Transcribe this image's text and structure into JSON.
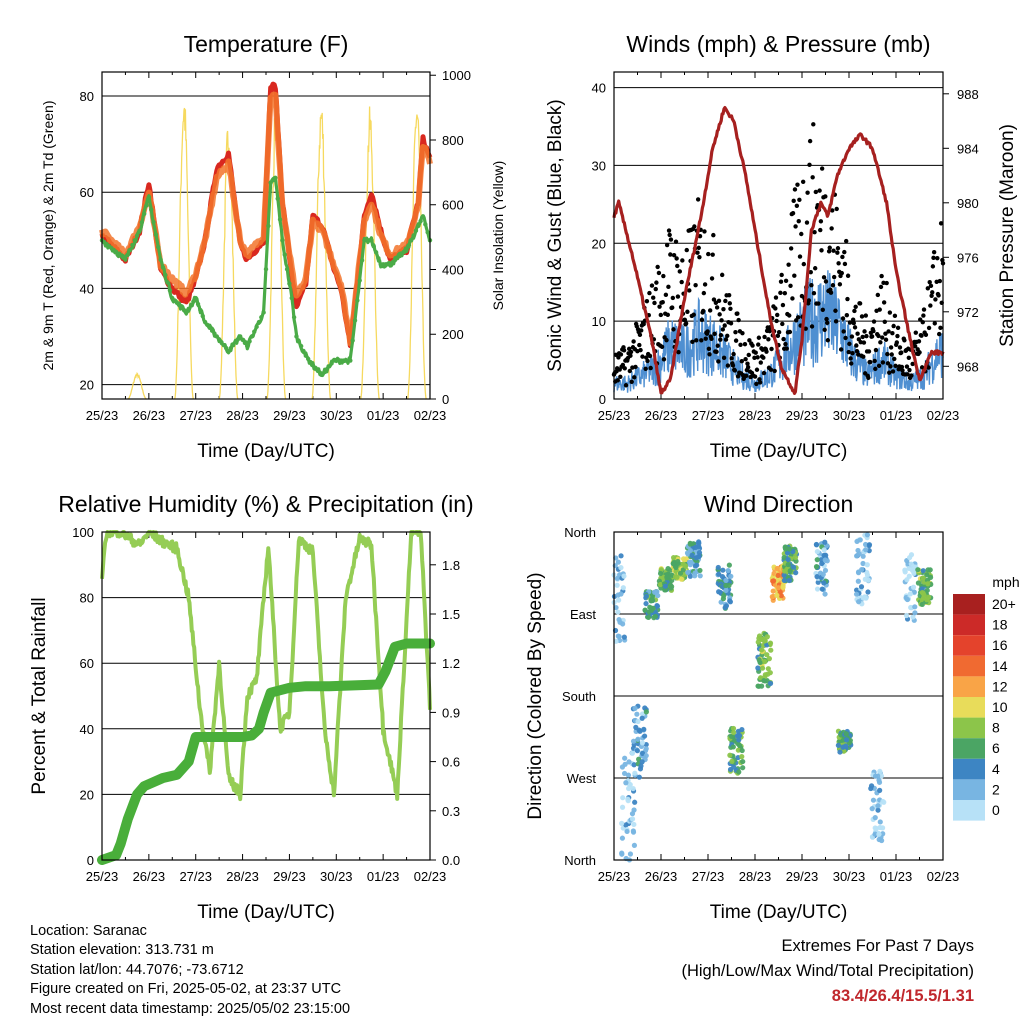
{
  "chart_data": [
    {
      "type": "line",
      "title": "Temperature (F)",
      "xlabel": "Time (Day/UTC)",
      "ylabel": "2m & 9m T (Red, Orange) & 2m Td (Green)",
      "ylabel_right": "Solar Insolation (Yellow)",
      "x_ticks": [
        "25/23",
        "26/23",
        "27/23",
        "28/23",
        "29/23",
        "30/23",
        "01/23",
        "02/23"
      ],
      "ylim": [
        17,
        85
      ],
      "y_ticks": [
        "20",
        "40",
        "60",
        "80"
      ],
      "ylim_right": [
        0,
        1010
      ],
      "y_ticks_right": [
        "0",
        "200",
        "400",
        "600",
        "800",
        "1000"
      ],
      "x_days": [
        0,
        0.5,
        0.8,
        1.0,
        1.25,
        1.5,
        1.8,
        2.0,
        2.2,
        2.45,
        2.7,
        2.95,
        3.1,
        3.45,
        3.6,
        3.7,
        3.85,
        4.05,
        4.15,
        4.35,
        4.5,
        4.7,
        4.95,
        5.1,
        5.3,
        5.6,
        5.75,
        5.95,
        6.15,
        6.5,
        6.75,
        6.85,
        7.0
      ],
      "series": [
        {
          "name": "2m T",
          "color": "#d9281f",
          "values": [
            51,
            46,
            52,
            62,
            44,
            40,
            37,
            42,
            50,
            65,
            68,
            49,
            46,
            50,
            82,
            82,
            58,
            43,
            36,
            41,
            55,
            53,
            44,
            40,
            28,
            55,
            60,
            52,
            46,
            48,
            58,
            71,
            67
          ]
        },
        {
          "name": "9m T",
          "color": "#f2742c",
          "values": [
            52,
            47,
            53,
            60,
            45,
            42,
            39,
            43,
            50,
            63,
            66,
            50,
            47,
            51,
            80,
            80,
            57,
            44,
            38,
            42,
            54,
            52,
            45,
            41,
            29,
            54,
            58,
            51,
            47,
            49,
            57,
            70,
            66
          ]
        },
        {
          "name": "2m Td",
          "color": "#4aab47",
          "values": [
            50,
            46,
            52,
            59,
            46,
            38,
            35,
            38,
            33,
            30,
            27,
            30,
            28,
            35,
            62,
            63,
            50,
            38,
            30,
            26,
            24,
            22,
            25,
            25,
            25,
            50,
            50,
            45,
            45,
            48,
            53,
            55,
            50
          ]
        }
      ],
      "solar_peaks_days": [
        0.75,
        1.75,
        2.7,
        3.72,
        4.68,
        5.72,
        6.72
      ],
      "solar_peaks": [
        80,
        960,
        880,
        970,
        940,
        910,
        950
      ]
    },
    {
      "type": "line",
      "title": "Winds (mph) & Pressure (mb)",
      "xlabel": "Time (Day/UTC)",
      "ylabel": "Sonic Wind & Gust (Blue, Black)",
      "ylabel_right": "Station Pressure (Maroon)",
      "x_ticks": [
        "25/23",
        "26/23",
        "27/23",
        "28/23",
        "29/23",
        "30/23",
        "01/23",
        "02/23"
      ],
      "ylim": [
        0,
        42
      ],
      "y_ticks": [
        "0",
        "10",
        "20",
        "30",
        "40"
      ],
      "ylim_right": [
        965.6,
        989.6
      ],
      "y_ticks_right": [
        "968",
        "972",
        "976",
        "980",
        "984",
        "988"
      ],
      "pressure_days": [
        0,
        0.1,
        0.4,
        0.8,
        1.0,
        1.2,
        1.5,
        1.85,
        2.1,
        2.35,
        2.55,
        2.8,
        3.05,
        3.3,
        3.55,
        3.85,
        4.0,
        4.2,
        4.4,
        4.55,
        4.75,
        5.0,
        5.25,
        5.5,
        5.8,
        6.0,
        6.3,
        6.5,
        6.75,
        7.0
      ],
      "pressure": [
        979,
        980,
        976,
        970,
        966,
        967,
        973,
        979,
        984,
        987,
        986,
        982,
        977,
        972,
        968,
        966,
        970,
        978,
        980,
        979,
        982,
        984,
        985,
        984,
        980,
        975,
        970,
        967,
        969,
        969
      ],
      "wind_days": [
        0,
        0.3,
        0.6,
        0.9,
        1.2,
        1.5,
        1.8,
        2.1,
        2.4,
        2.7,
        3.0,
        3.3,
        3.6,
        3.9,
        4.2,
        4.5,
        4.8,
        5.1,
        5.4,
        5.7,
        6.0,
        6.3,
        6.6,
        6.9
      ],
      "wind": [
        2,
        2,
        3,
        4,
        7,
        6,
        8,
        7,
        5,
        3,
        2,
        3,
        5,
        8,
        10,
        11,
        9,
        5,
        3,
        5,
        3,
        2,
        3,
        6
      ],
      "gust": [
        4,
        5,
        8,
        12,
        16,
        14,
        18,
        15,
        10,
        7,
        5,
        7,
        12,
        20,
        25,
        22,
        18,
        10,
        7,
        12,
        7,
        5,
        8,
        16
      ]
    },
    {
      "type": "line",
      "title": "Relative Humidity (%) & Precipitation (in)",
      "xlabel": "Time (Day/UTC)",
      "ylabel": "Percent & Total Rainfall",
      "x_ticks": [
        "25/23",
        "26/23",
        "27/23",
        "28/23",
        "29/23",
        "30/23",
        "01/23",
        "02/23"
      ],
      "ylim": [
        0,
        100
      ],
      "y_ticks": [
        "0",
        "20",
        "40",
        "60",
        "80",
        "100"
      ],
      "ylim_right": [
        0,
        2.0
      ],
      "y_ticks_right": [
        "0.0",
        "0.3",
        "0.6",
        "0.9",
        "1.2",
        "1.5",
        "1.8"
      ],
      "rh_days": [
        0,
        0.1,
        0.4,
        0.8,
        1.0,
        1.3,
        1.6,
        1.85,
        2.1,
        2.3,
        2.5,
        2.7,
        2.95,
        3.1,
        3.3,
        3.55,
        3.8,
        4.0,
        4.2,
        4.5,
        4.75,
        4.95,
        5.2,
        5.5,
        5.75,
        6.0,
        6.3,
        6.6,
        6.8,
        7.0
      ],
      "rh": [
        86,
        100,
        100,
        96,
        100,
        97,
        95,
        80,
        45,
        27,
        60,
        25,
        20,
        50,
        55,
        96,
        40,
        45,
        98,
        94,
        40,
        20,
        80,
        98,
        96,
        40,
        20,
        100,
        100,
        47
      ],
      "precip_days": [
        0,
        0.3,
        0.4,
        0.55,
        0.75,
        0.9,
        1.3,
        1.6,
        1.85,
        2.0,
        3.0,
        3.2,
        3.35,
        3.45,
        3.6,
        4.0,
        4.35,
        4.85,
        5.9,
        6.05,
        6.25,
        6.5,
        7.0
      ],
      "precip": [
        0.0,
        0.03,
        0.1,
        0.25,
        0.4,
        0.45,
        0.5,
        0.52,
        0.6,
        0.75,
        0.75,
        0.76,
        0.8,
        0.9,
        1.02,
        1.05,
        1.06,
        1.06,
        1.07,
        1.15,
        1.3,
        1.32,
        1.32
      ]
    },
    {
      "type": "scatter",
      "title": "Wind Direction",
      "xlabel": "Time (Day/UTC)",
      "ylabel": "Direction (Colored By Speed)",
      "x_ticks": [
        "25/23",
        "26/23",
        "27/23",
        "28/23",
        "29/23",
        "30/23",
        "01/23",
        "02/23"
      ],
      "y_ticks": [
        "North",
        "West",
        "South",
        "East",
        "North"
      ],
      "ylim": [
        0,
        360
      ],
      "legend_title": "mph",
      "legend_labels": [
        "20+",
        "18",
        "16",
        "14",
        "12",
        "10",
        "8",
        "6",
        "4",
        "2",
        "0"
      ],
      "legend_colors": [
        "#a8201f",
        "#cc2a28",
        "#e4432c",
        "#f06a31",
        "#f9a447",
        "#e8dc5a",
        "#8cc54a",
        "#4ba564",
        "#3d85c3",
        "#78b5e2",
        "#b7e1f7"
      ],
      "clusters": [
        {
          "day": 0.1,
          "dir": 290,
          "spread": 50,
          "speed": 2
        },
        {
          "day": 0.3,
          "dir": 60,
          "spread": 60,
          "speed": 1
        },
        {
          "day": 0.55,
          "dir": 130,
          "spread": 40,
          "speed": 3
        },
        {
          "day": 0.8,
          "dir": 280,
          "spread": 15,
          "speed": 5
        },
        {
          "day": 1.1,
          "dir": 308,
          "spread": 12,
          "speed": 7
        },
        {
          "day": 1.4,
          "dir": 320,
          "spread": 12,
          "speed": 8
        },
        {
          "day": 1.7,
          "dir": 330,
          "spread": 20,
          "speed": 4
        },
        {
          "day": 2.35,
          "dir": 300,
          "spread": 25,
          "speed": 4
        },
        {
          "day": 2.6,
          "dir": 120,
          "spread": 25,
          "speed": 6
        },
        {
          "day": 3.2,
          "dir": 220,
          "spread": 30,
          "speed": 7
        },
        {
          "day": 3.5,
          "dir": 305,
          "spread": 20,
          "speed": 12
        },
        {
          "day": 3.75,
          "dir": 325,
          "spread": 20,
          "speed": 6
        },
        {
          "day": 4.4,
          "dir": 320,
          "spread": 30,
          "speed": 3
        },
        {
          "day": 4.9,
          "dir": 130,
          "spread": 12,
          "speed": 6
        },
        {
          "day": 5.3,
          "dir": 320,
          "spread": 40,
          "speed": 2
        },
        {
          "day": 5.6,
          "dir": 60,
          "spread": 40,
          "speed": 1
        },
        {
          "day": 6.3,
          "dir": 300,
          "spread": 40,
          "speed": 1
        },
        {
          "day": 6.6,
          "dir": 300,
          "spread": 20,
          "speed": 7
        }
      ]
    }
  ],
  "station": {
    "location": "Location: Saranac",
    "elevation": "Station elevation: 313.731 m",
    "latlon": "Station lat/lon: 44.7076; -73.6712",
    "created": "Figure created on Fri, 2025-05-02, at 23:37 UTC",
    "recent": "Most recent data timestamp: 2025/05/02 23:15:00"
  },
  "extremes": {
    "title": "Extremes For Past 7 Days",
    "subtitle": "(High/Low/Max Wind/Total Precipitation)",
    "values": "83.4/26.4/15.5/1.31"
  }
}
